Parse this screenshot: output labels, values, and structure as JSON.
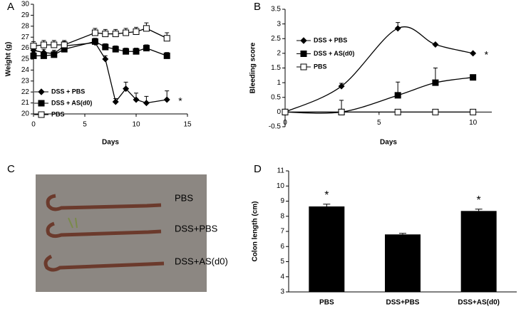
{
  "chart_data": [
    {
      "type": "line",
      "panel_label": "A",
      "xlabel": "Days",
      "ylabel": "Weight (g)",
      "x": [
        0,
        1,
        2,
        3,
        6,
        7,
        8,
        9,
        10,
        11,
        13
      ],
      "xlim": [
        0,
        15
      ],
      "xticks": [
        0,
        5,
        10,
        15
      ],
      "ylim": [
        20,
        30
      ],
      "yticks": [
        20,
        21,
        22,
        23,
        24,
        25,
        26,
        27,
        28,
        29,
        30
      ],
      "annotation": "*",
      "series": [
        {
          "name": "DSS + PBS",
          "color": "#000000",
          "marker": "diamond",
          "values": [
            25.8,
            25.6,
            25.5,
            26.2,
            26.5,
            25.0,
            21.1,
            22.3,
            21.3,
            21.0,
            21.3
          ],
          "errors": [
            0.4,
            0.3,
            0.3,
            0.4,
            0.3,
            0.3,
            0.3,
            0.6,
            0.6,
            0.6,
            0.8
          ]
        },
        {
          "name": "DSS + AS(d0)",
          "color": "#000000",
          "marker": "square",
          "values": [
            25.3,
            25.3,
            25.4,
            25.9,
            26.6,
            26.1,
            25.9,
            25.7,
            25.7,
            26.0,
            25.3
          ],
          "errors": [
            0.3,
            0.3,
            0.3,
            0.3,
            0.3,
            0.3,
            0.3,
            0.3,
            0.3,
            0.3,
            0.3
          ]
        },
        {
          "name": "PBS",
          "color": "#000000",
          "marker": "open-square",
          "values": [
            26.2,
            26.3,
            26.3,
            26.3,
            27.4,
            27.3,
            27.3,
            27.4,
            27.5,
            27.8,
            26.9
          ],
          "errors": [
            0.4,
            0.4,
            0.4,
            0.4,
            0.4,
            0.4,
            0.4,
            0.4,
            0.4,
            0.5,
            0.5
          ]
        }
      ]
    },
    {
      "type": "line",
      "panel_label": "B",
      "xlabel": "Days",
      "ylabel": "Bleeding score",
      "smooth": true,
      "x": [
        0,
        3,
        6,
        8,
        10
      ],
      "xlim": [
        0,
        11
      ],
      "xticks": [
        0,
        5,
        10
      ],
      "ylim": [
        -0.5,
        3.5
      ],
      "yticks": [
        -0.5,
        0,
        0.5,
        1,
        1.5,
        2,
        2.5,
        3,
        3.5
      ],
      "annotation": "*",
      "series": [
        {
          "name": "DSS + PBS",
          "color": "#000000",
          "marker": "diamond",
          "values": [
            0,
            0.88,
            2.85,
            2.3,
            2.0
          ],
          "errors": [
            0,
            0.1,
            0.2,
            0,
            0
          ]
        },
        {
          "name": "DSS + AS(d0)",
          "color": "#000000",
          "marker": "square",
          "values": [
            0,
            0,
            0.57,
            1.0,
            1.18
          ],
          "errors": [
            0,
            0.4,
            0.45,
            0.5,
            0
          ]
        },
        {
          "name": "PBS",
          "color": "#000000",
          "marker": "open-square",
          "values": [
            0,
            0,
            0,
            0,
            0
          ],
          "errors": [
            0,
            0,
            0,
            0,
            0
          ]
        }
      ]
    },
    {
      "type": "image",
      "panel_label": "C",
      "labels": [
        "PBS",
        "DSS+PBS",
        "DSS+AS(d0)"
      ]
    },
    {
      "type": "bar",
      "panel_label": "D",
      "ylabel": "Colon length (cm)",
      "categories": [
        "PBS",
        "DSS+PBS",
        "DSS+AS(d0)"
      ],
      "values": [
        8.65,
        6.8,
        8.35
      ],
      "errors": [
        0.15,
        0.07,
        0.12
      ],
      "significance": [
        "*",
        null,
        "*"
      ],
      "color": "#000000",
      "ylim": [
        3,
        11
      ],
      "yticks": [
        3,
        4,
        5,
        6,
        7,
        8,
        9,
        10,
        11
      ]
    }
  ]
}
